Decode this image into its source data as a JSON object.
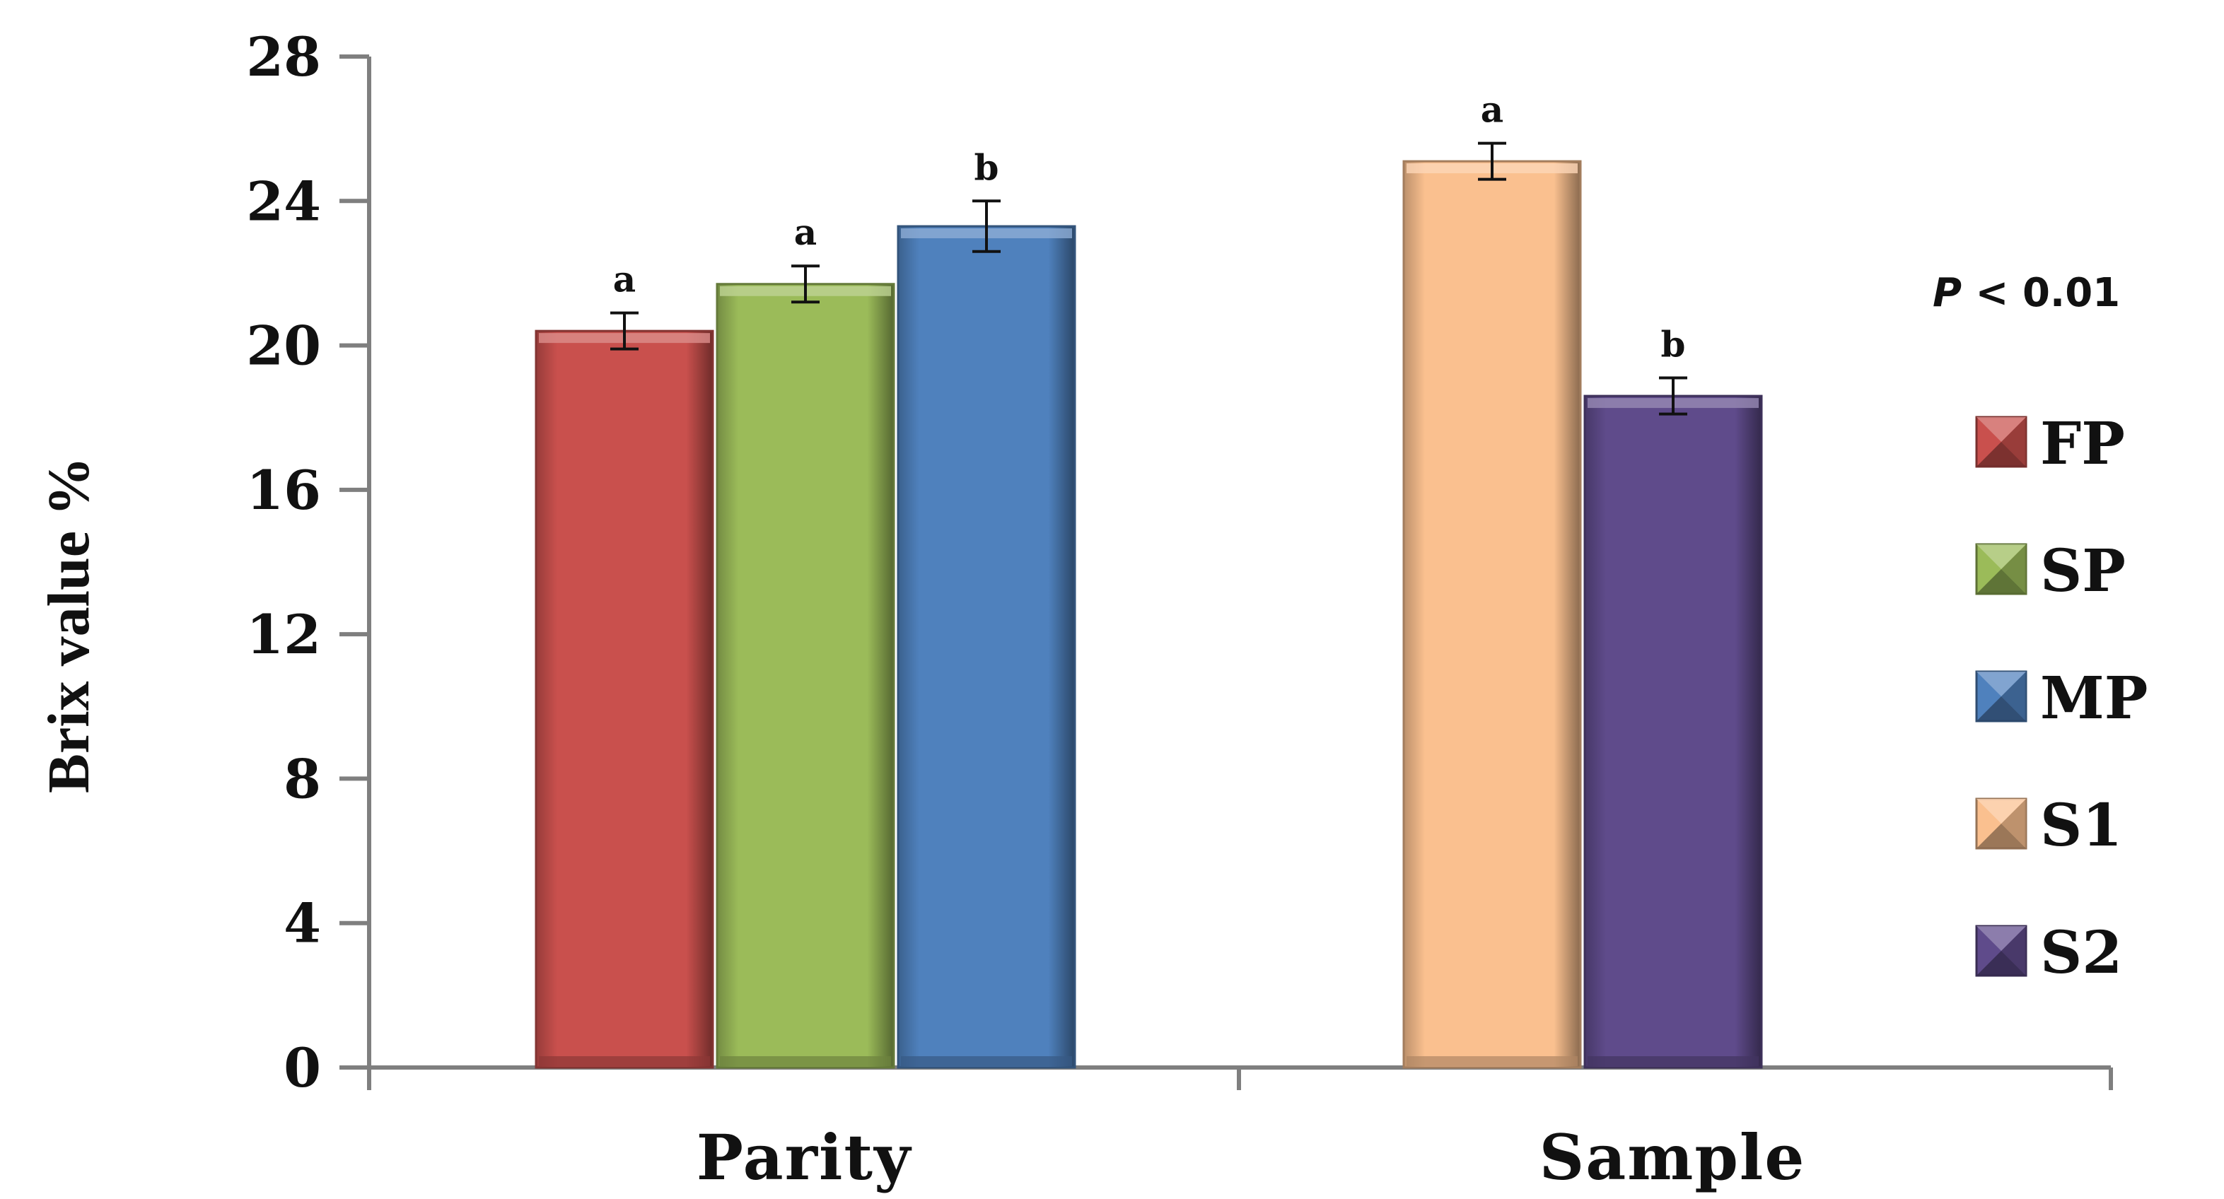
{
  "chart_data": {
    "type": "bar",
    "title": "",
    "ylabel": "Brix value %",
    "xlabel": "",
    "ylim": [
      0,
      28
    ],
    "yticks": [
      "0",
      "4",
      "8",
      "12",
      "16",
      "20",
      "24",
      "28"
    ],
    "grid": false,
    "legend_position": "right",
    "annotation": {
      "italic_part": "P",
      "rest": " < 0.01"
    },
    "groups": [
      {
        "label": "Parity",
        "bars": [
          {
            "name": "FP",
            "value": 20.4,
            "error": 0.5,
            "sig": "a",
            "color": "#c9504d"
          },
          {
            "name": "SP",
            "value": 21.7,
            "error": 0.5,
            "sig": "a",
            "color": "#9bbb59"
          },
          {
            "name": "MP",
            "value": 23.3,
            "error": 0.7,
            "sig": "b",
            "color": "#4f81bd"
          }
        ]
      },
      {
        "label": "Sample",
        "bars": [
          {
            "name": "S1",
            "value": 25.1,
            "error": 0.5,
            "sig": "a",
            "color": "#fac08f"
          },
          {
            "name": "S2",
            "value": 18.6,
            "error": 0.5,
            "sig": "b",
            "color": "#5f4b8b"
          }
        ]
      }
    ],
    "legend": [
      {
        "name": "FP",
        "color": "#c9504d"
      },
      {
        "name": "SP",
        "color": "#9bbb59"
      },
      {
        "name": "MP",
        "color": "#4f81bd"
      },
      {
        "name": "S1",
        "color": "#fac08f"
      },
      {
        "name": "S2",
        "color": "#5f4b8b"
      }
    ]
  }
}
